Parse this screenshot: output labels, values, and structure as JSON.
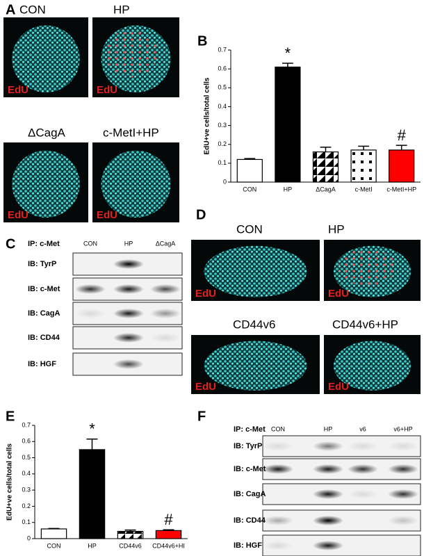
{
  "panel_labels": [
    "A",
    "B",
    "C",
    "D",
    "E",
    "F"
  ],
  "panel_a": {
    "images": [
      {
        "label": "CON",
        "stain": "EdU"
      },
      {
        "label": "HP",
        "stain": "EdU"
      },
      {
        "label": "ΔCagA",
        "stain": "EdU"
      },
      {
        "label": "c-MetI+HP",
        "stain": "EdU"
      }
    ]
  },
  "panel_c": {
    "ip": "IP: c-Met",
    "lanes": [
      "CON",
      "HP",
      "ΔCagA"
    ],
    "rows": [
      "IB: TyrP",
      "IB: c-Met",
      "IB: CagA",
      "IB: CD44",
      "IB: HGF"
    ]
  },
  "panel_d": {
    "images": [
      {
        "label": "CON",
        "stain": "EdU"
      },
      {
        "label": "HP",
        "stain": "EdU"
      },
      {
        "label": "CD44v6",
        "stain": "EdU"
      },
      {
        "label": "CD44v6+HP",
        "stain": "EdU"
      }
    ]
  },
  "panel_f": {
    "ip": "IP: c-Met",
    "lanes": [
      "CON",
      "HP",
      "v6",
      "v6+HP"
    ],
    "rows": [
      "IB: TyrP",
      "IB: c-Met",
      "IB: CagA",
      "IB: CD44",
      "IB: HGF"
    ]
  },
  "chart_data": [
    {
      "type": "bar",
      "ylabel": "EdU+ve cells/total cells",
      "categories": [
        "CON",
        "HP",
        "ΔCagA",
        "c-MetI",
        "c-MetI+HP"
      ],
      "values": [
        0.12,
        0.61,
        0.16,
        0.17,
        0.17
      ],
      "errors": [
        0.005,
        0.02,
        0.025,
        0.02,
        0.025
      ],
      "colors": [
        "#ffffff",
        "#000000",
        "#ffffff",
        "#ffffff",
        "#ff0000"
      ],
      "patterns": [
        null,
        null,
        "diagonal",
        "dots",
        null
      ],
      "annotations": [
        null,
        "*",
        null,
        null,
        "#"
      ],
      "ylim": [
        0,
        0.7
      ],
      "yticks": [
        0,
        0.1,
        0.2,
        0.3,
        0.4,
        0.5,
        0.6,
        0.7
      ]
    },
    {
      "type": "bar",
      "ylabel": "EdU+ve cells/total cells",
      "categories": [
        "CON",
        "HP",
        "CD44v6",
        "CD44v6+HI"
      ],
      "values": [
        0.06,
        0.55,
        0.045,
        0.05
      ],
      "errors": [
        0.003,
        0.065,
        0.008,
        0.005
      ],
      "colors": [
        "#ffffff",
        "#000000",
        "#ffffff",
        "#ff0000"
      ],
      "patterns": [
        null,
        null,
        "diagonal",
        null
      ],
      "annotations": [
        null,
        "*",
        null,
        "#"
      ],
      "ylim": [
        0,
        0.7
      ],
      "yticks": [
        0,
        0.1,
        0.2,
        0.3,
        0.4,
        0.5,
        0.6,
        0.7
      ]
    }
  ]
}
